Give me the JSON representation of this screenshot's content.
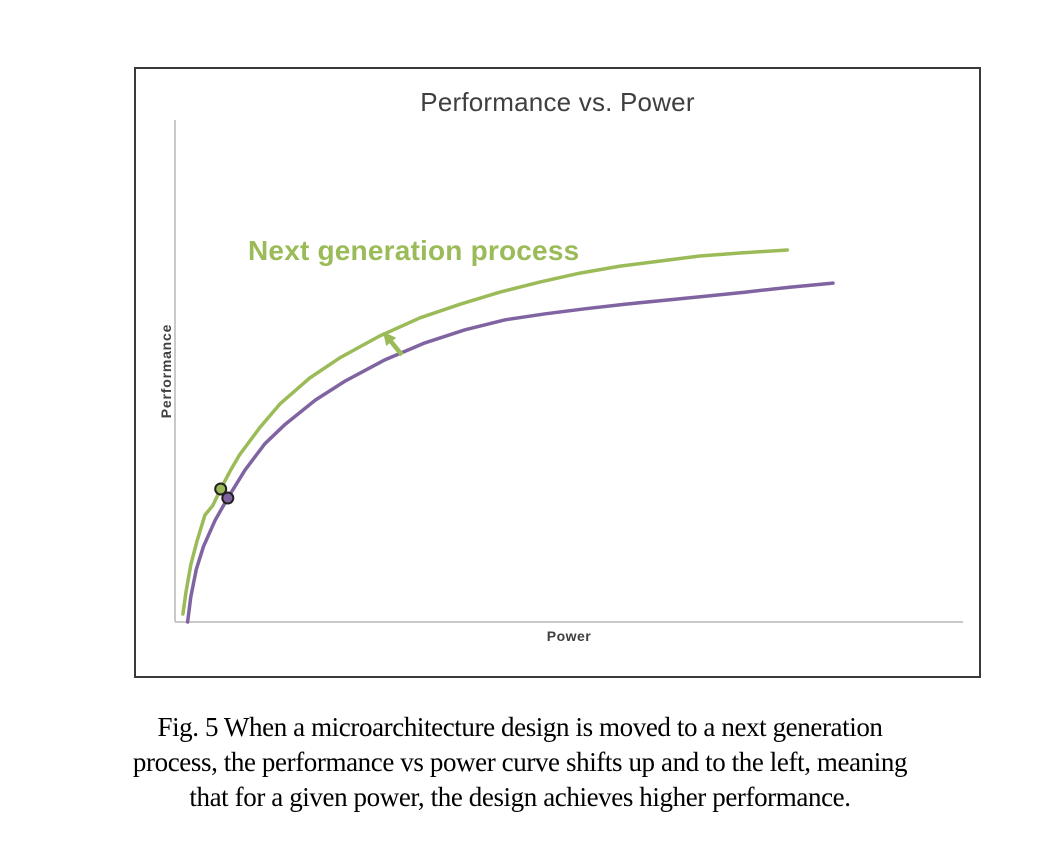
{
  "page": {
    "background": "#ffffff"
  },
  "figure": {
    "border_color": "#3a3a3a"
  },
  "colors": {
    "title_text": "#3f3f3f",
    "axis_text": "#404040",
    "axis_line": "#c9c9c9",
    "marker_outline": "#222222"
  },
  "chart_data": {
    "type": "line",
    "title": "Performance vs. Power",
    "xlabel": "Power",
    "ylabel": "Performance",
    "x_range": [
      0,
      10
    ],
    "y_range": [
      0,
      10
    ],
    "grid": false,
    "axis_ticks": false,
    "legend_position": "inline-label-on-upper-curve",
    "series": [
      {
        "name": "Next generation process",
        "color": "#9bbb59",
        "points": [
          [
            0.1,
            0.16
          ],
          [
            0.14,
            0.6
          ],
          [
            0.2,
            1.14
          ],
          [
            0.28,
            1.62
          ],
          [
            0.38,
            2.13
          ],
          [
            0.48,
            2.32
          ],
          [
            0.58,
            2.65
          ],
          [
            0.7,
            3.01
          ],
          [
            0.82,
            3.33
          ],
          [
            1.08,
            3.88
          ],
          [
            1.33,
            4.34
          ],
          [
            1.71,
            4.86
          ],
          [
            2.09,
            5.26
          ],
          [
            2.6,
            5.7
          ],
          [
            3.11,
            6.06
          ],
          [
            3.62,
            6.33
          ],
          [
            4.12,
            6.57
          ],
          [
            4.63,
            6.77
          ],
          [
            5.14,
            6.95
          ],
          [
            5.65,
            7.09
          ],
          [
            6.15,
            7.19
          ],
          [
            6.66,
            7.29
          ],
          [
            7.17,
            7.35
          ],
          [
            7.77,
            7.41
          ]
        ],
        "marker_at": [
          0.58,
          2.65
        ]
      },
      {
        "name": "",
        "color": "#8064a2",
        "points": [
          [
            0.16,
            0.0
          ],
          [
            0.2,
            0.5
          ],
          [
            0.27,
            1.05
          ],
          [
            0.36,
            1.5
          ],
          [
            0.51,
            2.03
          ],
          [
            0.67,
            2.47
          ],
          [
            0.89,
            3.03
          ],
          [
            1.14,
            3.55
          ],
          [
            1.4,
            3.94
          ],
          [
            1.78,
            4.42
          ],
          [
            2.16,
            4.8
          ],
          [
            2.66,
            5.22
          ],
          [
            3.17,
            5.56
          ],
          [
            3.68,
            5.82
          ],
          [
            4.19,
            6.02
          ],
          [
            4.7,
            6.14
          ],
          [
            5.2,
            6.24
          ],
          [
            5.71,
            6.33
          ],
          [
            6.22,
            6.41
          ],
          [
            6.73,
            6.49
          ],
          [
            7.23,
            6.57
          ],
          [
            7.8,
            6.67
          ],
          [
            8.35,
            6.75
          ]
        ],
        "marker_at": [
          0.67,
          2.47
        ]
      }
    ],
    "annotations": [
      {
        "type": "arrow",
        "color": "#9bbb59",
        "from": [
          2.88,
          5.32
        ],
        "to": [
          2.64,
          5.78
        ]
      }
    ]
  },
  "caption": {
    "lines": [
      "Fig. 5 When a microarchitecture design is moved to a next generation",
      "process, the performance vs power curve shifts up and to the left, meaning",
      "that for a given power, the design achieves higher performance."
    ]
  }
}
